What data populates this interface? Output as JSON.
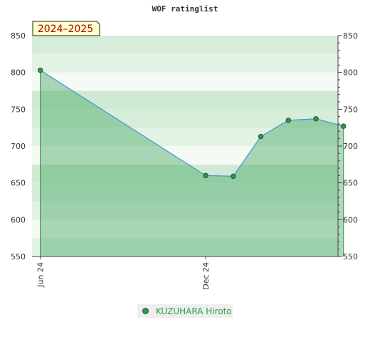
{
  "chart_data": {
    "type": "area",
    "title": "WOF ratinglist",
    "period_badge": "2024–2025",
    "ylim": [
      550,
      850
    ],
    "y_ticks": [
      550,
      600,
      650,
      700,
      750,
      800,
      850
    ],
    "x_ticks": [
      {
        "label": "Jun 24",
        "t": 0.0
      },
      {
        "label": "Dec 24",
        "t": 6.0
      }
    ],
    "x_range": [
      -0.3,
      10.8
    ],
    "series": [
      {
        "name": "KUZUHARA Hiroto",
        "color": "#2e9a4c",
        "points": [
          {
            "t": 0.0,
            "value": 803
          },
          {
            "t": 6.0,
            "value": 660
          },
          {
            "t": 7.0,
            "value": 659
          },
          {
            "t": 8.0,
            "value": 713
          },
          {
            "t": 9.0,
            "value": 735
          },
          {
            "t": 10.0,
            "value": 737
          },
          {
            "t": 11.0,
            "value": 727
          }
        ]
      }
    ],
    "grid": true,
    "legend_position": "bottom"
  }
}
